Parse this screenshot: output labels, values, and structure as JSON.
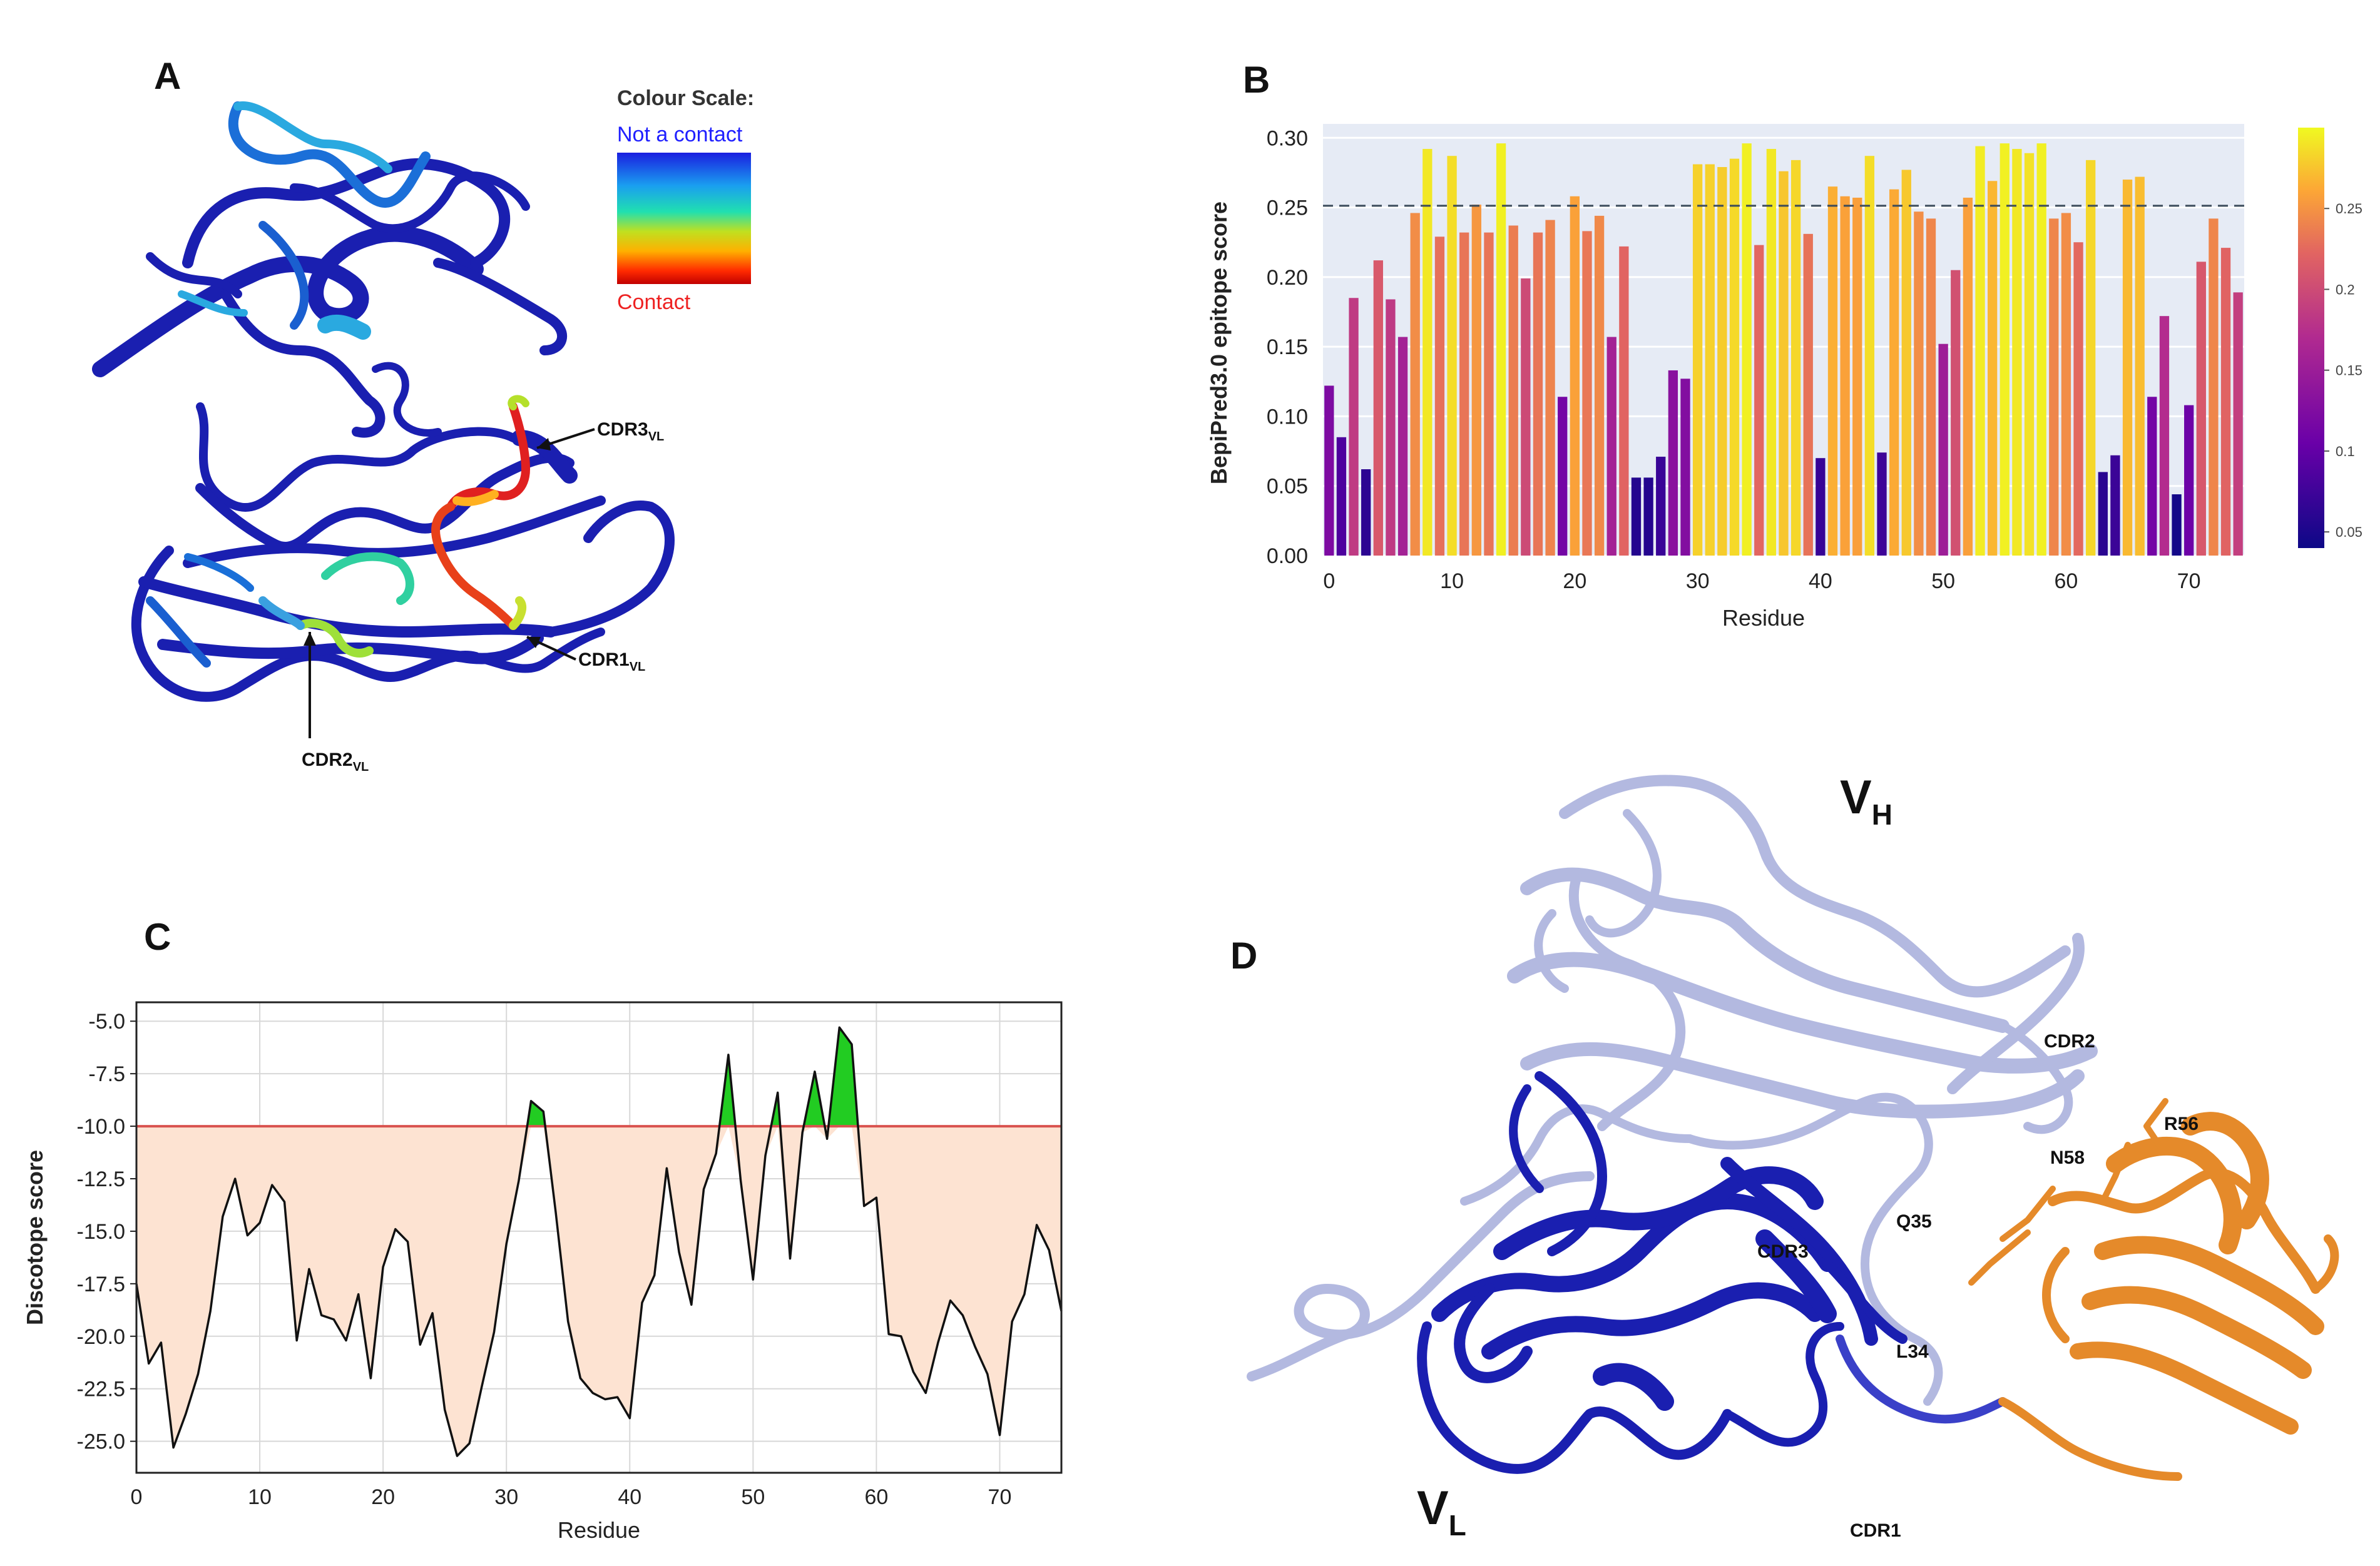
{
  "figure": {
    "panel_labels": {
      "a": "A",
      "b": "B",
      "c": "C",
      "d": "D"
    },
    "colour_scale": {
      "title": "Colour Scale:",
      "top_label": "Not a contact",
      "bottom_label": "Contact"
    },
    "panel_a_annotations": {
      "cdr3": "CDR3",
      "cdr1": "CDR1",
      "cdr2": "CDR2",
      "subscript": "VL"
    },
    "panel_d_annotations": {
      "vh": "V",
      "vh_sub": "H",
      "vl": "V",
      "vl_sub": "L",
      "cdr1": "CDR1",
      "cdr2": "CDR2",
      "cdr3": "CDR3",
      "r56": "R56",
      "n58": "N58",
      "q35": "Q35",
      "l34": "L34"
    },
    "colors": {
      "vh": "#b3b9e0",
      "vl": "#1a1fb0",
      "antigen": "#e58a2a",
      "threshold_c": "#d9534f",
      "epitope_fill": "#22cc22",
      "area_fill": "#fde3d2"
    }
  },
  "chart_data": [
    {
      "type": "bar",
      "panel": "B",
      "title": "",
      "xlabel": "Residue",
      "ylabel": "BepiPred3.0 epitope score",
      "xlim": [
        -0.5,
        74.5
      ],
      "ylim": [
        0,
        0.31
      ],
      "xticks": [
        0,
        10,
        20,
        30,
        40,
        50,
        60,
        70
      ],
      "yticks": [
        "0.00",
        "0.05",
        "0.10",
        "0.15",
        "0.20",
        "0.25",
        "0.30"
      ],
      "threshold": 0.2512,
      "colorbar": {
        "min": 0.04,
        "max": 0.3,
        "ticks": [
          "0.25",
          "0.2",
          "0.15",
          "0.1",
          "0.05"
        ],
        "tick_values": [
          0.25,
          0.2,
          0.15,
          0.1,
          0.05
        ]
      },
      "x": [
        0,
        1,
        2,
        3,
        4,
        5,
        6,
        7,
        8,
        9,
        10,
        11,
        12,
        13,
        14,
        15,
        16,
        17,
        18,
        19,
        20,
        21,
        22,
        23,
        24,
        25,
        26,
        27,
        28,
        29,
        30,
        31,
        32,
        33,
        34,
        35,
        36,
        37,
        38,
        39,
        40,
        41,
        42,
        43,
        44,
        45,
        46,
        47,
        48,
        49,
        50,
        51,
        52,
        53,
        54,
        55,
        56,
        57,
        58,
        59,
        60,
        61,
        62,
        63,
        64,
        65,
        66,
        67,
        68,
        69,
        70,
        71,
        72,
        73,
        74
      ],
      "values": [
        0.122,
        0.085,
        0.185,
        0.062,
        0.212,
        0.184,
        0.157,
        0.246,
        0.292,
        0.229,
        0.287,
        0.232,
        0.252,
        0.232,
        0.296,
        0.237,
        0.199,
        0.232,
        0.241,
        0.114,
        0.258,
        0.233,
        0.244,
        0.157,
        0.222,
        0.056,
        0.056,
        0.071,
        0.133,
        0.127,
        0.281,
        0.281,
        0.279,
        0.285,
        0.296,
        0.223,
        0.292,
        0.276,
        0.284,
        0.231,
        0.07,
        0.265,
        0.258,
        0.257,
        0.287,
        0.074,
        0.263,
        0.277,
        0.247,
        0.242,
        0.152,
        0.205,
        0.257,
        0.294,
        0.269,
        0.296,
        0.292,
        0.289,
        0.296,
        0.242,
        0.246,
        0.225,
        0.284,
        0.06,
        0.072,
        0.27,
        0.272,
        0.114,
        0.172,
        0.044,
        0.108,
        0.211,
        0.242,
        0.221,
        0.189
      ]
    },
    {
      "type": "line",
      "panel": "C",
      "title": "",
      "xlabel": "Residue",
      "ylabel": "Discotope score",
      "xlim": [
        0,
        75
      ],
      "ylim": [
        -26.5,
        -4.1
      ],
      "xticks": [
        0,
        10,
        20,
        30,
        40,
        50,
        60,
        70
      ],
      "yticks": [
        "-5.0",
        "-7.5",
        "-10.0",
        "-12.5",
        "-15.0",
        "-17.5",
        "-20.0",
        "-22.5",
        "-25.0"
      ],
      "threshold": -10.0,
      "x": [
        0,
        1,
        2,
        3,
        4,
        5,
        6,
        7,
        8,
        9,
        10,
        11,
        12,
        13,
        14,
        15,
        16,
        17,
        18,
        19,
        20,
        21,
        22,
        23,
        24,
        25,
        26,
        27,
        28,
        29,
        30,
        31,
        32,
        33,
        34,
        35,
        36,
        37,
        38,
        39,
        40,
        41,
        42,
        43,
        44,
        45,
        46,
        47,
        48,
        49,
        50,
        51,
        52,
        53,
        54,
        55,
        56,
        57,
        58,
        59,
        60,
        61,
        62,
        63,
        64,
        65,
        66,
        67,
        68,
        69,
        70,
        71,
        72,
        73,
        74,
        75
      ],
      "values": [
        -17.5,
        -21.3,
        -20.3,
        -25.3,
        -23.7,
        -21.8,
        -18.8,
        -14.3,
        -12.5,
        -15.2,
        -14.6,
        -12.8,
        -13.6,
        -20.2,
        -16.8,
        -19.0,
        -19.2,
        -20.2,
        -18.0,
        -22.0,
        -16.7,
        -14.9,
        -15.5,
        -20.4,
        -18.9,
        -23.5,
        -25.7,
        -25.1,
        -22.4,
        -19.8,
        -15.6,
        -12.6,
        -8.8,
        -9.3,
        -14.1,
        -19.3,
        -22.0,
        -22.7,
        -23.0,
        -22.9,
        -23.9,
        -18.4,
        -17.1,
        -12.0,
        -16.0,
        -18.5,
        -13.0,
        -11.3,
        -6.6,
        -12.6,
        -17.3,
        -11.4,
        -8.4,
        -16.3,
        -10.3,
        -7.4,
        -10.6,
        -5.3,
        -6.1,
        -13.8,
        -13.4,
        -19.9,
        -20.0,
        -21.7,
        -22.7,
        -20.3,
        -18.3,
        -19.0,
        -20.5,
        -21.8,
        -24.7,
        -19.3,
        -18.0,
        -14.7,
        -15.9,
        -18.8
      ]
    }
  ]
}
